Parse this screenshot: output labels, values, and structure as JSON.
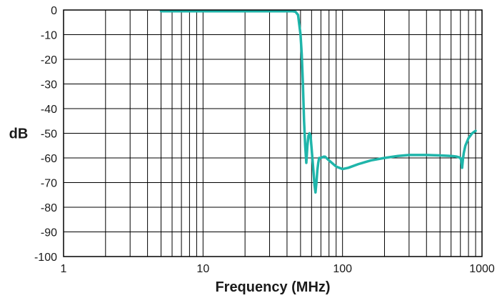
{
  "chart_data": {
    "type": "line",
    "title": "",
    "xlabel": "Frequency (MHz)",
    "ylabel": "dB",
    "x_scale": "log",
    "xlim": [
      1,
      1000
    ],
    "ylim": [
      -100,
      0
    ],
    "grid": true,
    "x_ticks": [
      "1",
      "10",
      "100",
      "1000"
    ],
    "y_ticks": [
      "0",
      "-10",
      "-20",
      "-30",
      "-40",
      "-50",
      "-60",
      "-70",
      "-80",
      "-90",
      "-100"
    ],
    "series_color": "#1fb5aa",
    "series": [
      {
        "x": [
          5,
          10,
          20,
          30,
          40,
          44,
          46,
          48,
          50,
          51,
          52,
          53,
          54,
          55,
          56,
          57,
          58,
          59,
          60,
          62,
          63,
          64,
          65,
          66,
          67,
          68,
          70,
          73,
          75,
          80,
          90,
          100,
          110,
          130,
          160,
          200,
          250,
          300,
          400,
          500,
          600,
          650,
          680,
          700,
          710,
          720,
          730,
          740,
          750,
          760,
          800,
          850,
          900
        ],
        "y": [
          -0.5,
          -0.5,
          -0.5,
          -0.5,
          -0.5,
          -0.5,
          -0.7,
          -2,
          -10,
          -18,
          -30,
          -45,
          -55,
          -62,
          -55,
          -51,
          -50,
          -51,
          -56,
          -66,
          -71,
          -74,
          -70,
          -65,
          -62,
          -60,
          -60,
          -59.5,
          -59.5,
          -61,
          -63.5,
          -64.5,
          -64,
          -62.5,
          -61,
          -60,
          -59.2,
          -58.8,
          -58.8,
          -59,
          -59.2,
          -59.4,
          -59.7,
          -60,
          -61,
          -64,
          -60.5,
          -58,
          -56.5,
          -55,
          -52,
          -50,
          -49
        ]
      }
    ]
  }
}
